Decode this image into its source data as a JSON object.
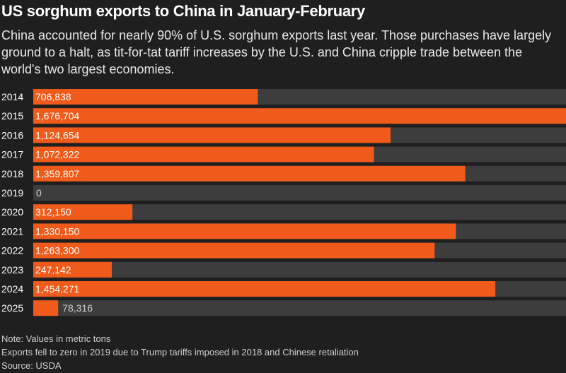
{
  "header": {
    "title": "US sorghum exports to China in January-February",
    "subtitle": "China accounted for nearly 90% of U.S. sorghum exports last year. Those purchases have largely ground to a halt, as tit-for-tat tariff increases by the U.S. and China cripple trade between the world's two largest economies."
  },
  "chart_data": {
    "type": "bar",
    "orientation": "horizontal",
    "categories": [
      "2014",
      "2015",
      "2016",
      "2017",
      "2018",
      "2019",
      "2020",
      "2021",
      "2022",
      "2023",
      "2024",
      "2025"
    ],
    "values": [
      706838,
      1676704,
      1124654,
      1072322,
      1359807,
      0,
      312150,
      1330150,
      1263300,
      247142,
      1454271,
      78316
    ],
    "value_labels": [
      "706,838",
      "1,676,704",
      "1,124,654",
      "1,072,322",
      "1,359,807",
      "0",
      "312,150",
      "1,330,150",
      "1,263,300",
      "247,142",
      "1,454,271",
      "78,316"
    ],
    "xlim": [
      0,
      1676704
    ],
    "grid": false,
    "legend": "none"
  },
  "colors": {
    "bar": "#f05a1a",
    "track": "#3d3d3d",
    "background": "#1f1f1f",
    "label_text": "#ffffff",
    "outside_label_text": "#d0d0d0"
  },
  "notes": {
    "note1": "Note: Values in metric tons",
    "note2": "Exports fell to zero in 2019 due to Trump tariffs imposed in 2018 and Chinese retaliation",
    "source": "Source: USDA"
  }
}
